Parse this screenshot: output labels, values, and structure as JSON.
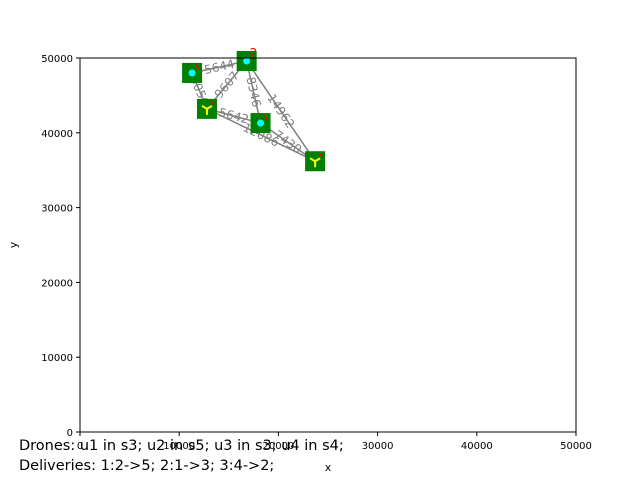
{
  "chart_data": {
    "type": "scatter",
    "xlabel": "x",
    "ylabel": "y",
    "xlim": [
      0,
      50000
    ],
    "ylim": [
      0,
      50000
    ],
    "xticks": [
      "0",
      "10000",
      "20000",
      "30000",
      "40000",
      "50000"
    ],
    "yticks": [
      "0",
      "10000",
      "20000",
      "30000",
      "40000",
      "50000"
    ],
    "stations": [
      {
        "id": "s1",
        "x": 11300,
        "y": 48000,
        "marker": "cyan-dot"
      },
      {
        "id": "s2",
        "x": 16800,
        "y": 49600,
        "marker": "cyan-dot"
      },
      {
        "id": "s3",
        "x": 12800,
        "y": 43200,
        "marker": "tripod"
      },
      {
        "id": "s4",
        "x": 18200,
        "y": 41300,
        "marker": "cyan-dot"
      },
      {
        "id": "s5",
        "x": 23700,
        "y": 36200,
        "marker": "tripod"
      }
    ],
    "edges": [
      {
        "from": 0,
        "to": 2,
        "label": "5056"
      },
      {
        "from": 0,
        "to": 1,
        "label": "5644"
      },
      {
        "from": 1,
        "to": 2,
        "label": "9607"
      },
      {
        "from": 1,
        "to": 3,
        "label": "8346"
      },
      {
        "from": 1,
        "to": 4,
        "label": "14962"
      },
      {
        "from": 2,
        "to": 3,
        "label": "5642"
      },
      {
        "from": 2,
        "to": 4,
        "label": "12086"
      },
      {
        "from": 3,
        "to": 4,
        "label": "7430"
      }
    ],
    "red_mark_label": "2"
  },
  "caption": {
    "drones": "Drones: u1 in s3; u2 in s5; u3 in s3; u4 in s4;",
    "deliveries": "Deliveries: 1:2->5; 2:1->3; 3:4->2;"
  },
  "colors": {
    "station_fill": "#008000",
    "edge": "#808080",
    "drone_dot": "#00ffff",
    "tripod": "#ffff00",
    "red_mark": "#ff0000"
  }
}
